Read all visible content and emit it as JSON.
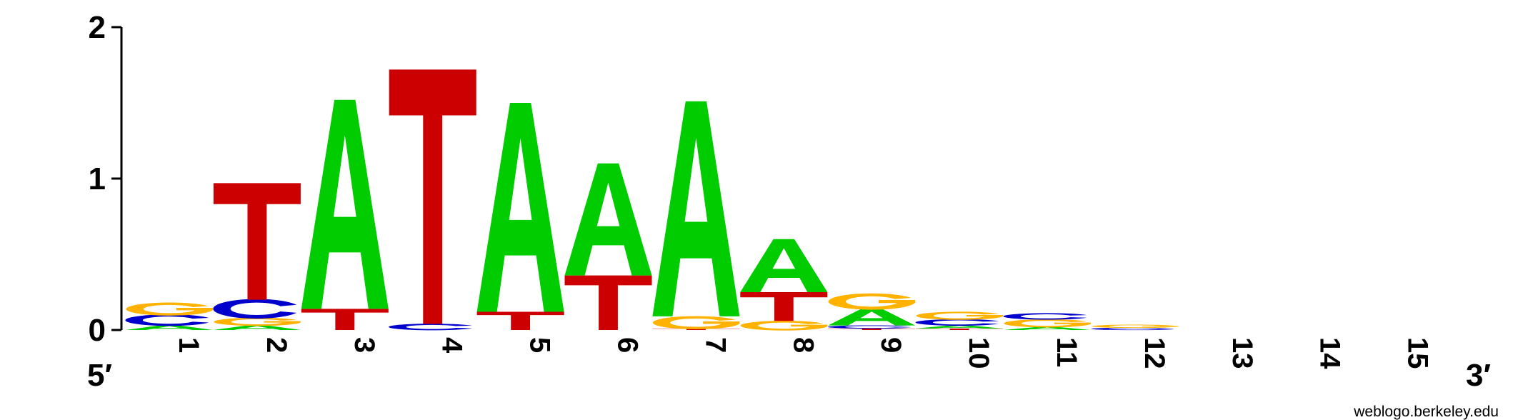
{
  "chart_data": {
    "type": "sequence-logo",
    "y_axis": {
      "ticks": [
        "0",
        "1",
        "2"
      ],
      "ylim": [
        0,
        2
      ]
    },
    "ends": {
      "left": "5′",
      "right": "3′"
    },
    "credit": "weblogo.berkeley.edu",
    "colors": {
      "A": "#00cc00",
      "C": "#0000cc",
      "G": "#ffb300",
      "T": "#cc0000"
    },
    "positions": [
      {
        "label": "1",
        "letters": [
          {
            "base": "A",
            "height": 0.03
          },
          {
            "base": "C",
            "height": 0.07
          },
          {
            "base": "G",
            "height": 0.08
          }
        ]
      },
      {
        "label": "2",
        "letters": [
          {
            "base": "A",
            "height": 0.03
          },
          {
            "base": "G",
            "height": 0.05
          },
          {
            "base": "C",
            "height": 0.12
          },
          {
            "base": "T",
            "height": 0.77
          }
        ]
      },
      {
        "label": "3",
        "letters": [
          {
            "base": "T",
            "height": 0.14
          },
          {
            "base": "A",
            "height": 1.38
          }
        ]
      },
      {
        "label": "4",
        "letters": [
          {
            "base": "C",
            "height": 0.04
          },
          {
            "base": "T",
            "height": 1.68
          }
        ]
      },
      {
        "label": "5",
        "letters": [
          {
            "base": "T",
            "height": 0.12
          },
          {
            "base": "A",
            "height": 1.38
          }
        ]
      },
      {
        "label": "6",
        "letters": [
          {
            "base": "T",
            "height": 0.36
          },
          {
            "base": "A",
            "height": 0.74
          }
        ]
      },
      {
        "label": "7",
        "letters": [
          {
            "base": "T",
            "height": 0.01
          },
          {
            "base": "G",
            "height": 0.08
          },
          {
            "base": "A",
            "height": 1.42
          }
        ]
      },
      {
        "label": "8",
        "letters": [
          {
            "base": "G",
            "height": 0.06
          },
          {
            "base": "T",
            "height": 0.19
          },
          {
            "base": "A",
            "height": 0.35
          }
        ]
      },
      {
        "label": "9",
        "letters": [
          {
            "base": "T",
            "height": 0.01
          },
          {
            "base": "C",
            "height": 0.02
          },
          {
            "base": "A",
            "height": 0.11
          },
          {
            "base": "G",
            "height": 0.1
          }
        ]
      },
      {
        "label": "10",
        "letters": [
          {
            "base": "T",
            "height": 0.01
          },
          {
            "base": "A",
            "height": 0.02
          },
          {
            "base": "C",
            "height": 0.04
          },
          {
            "base": "G",
            "height": 0.05
          }
        ]
      },
      {
        "label": "11",
        "letters": [
          {
            "base": "A",
            "height": 0.02
          },
          {
            "base": "G",
            "height": 0.05
          },
          {
            "base": "C",
            "height": 0.04
          }
        ]
      },
      {
        "label": "12",
        "letters": [
          {
            "base": "C",
            "height": 0.015
          },
          {
            "base": "G",
            "height": 0.02
          }
        ]
      },
      {
        "label": "13",
        "letters": []
      },
      {
        "label": "14",
        "letters": []
      },
      {
        "label": "15",
        "letters": []
      }
    ]
  }
}
